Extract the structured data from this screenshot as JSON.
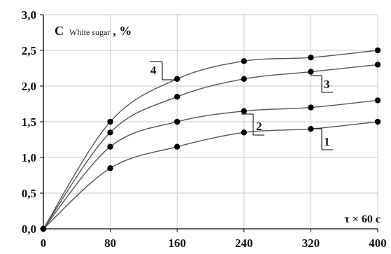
{
  "chart_data": {
    "type": "line",
    "ylabel": {
      "main": "C",
      "sub": "White sugar",
      "unit": ", %"
    },
    "xlabel_annotation": "τ × 60 c",
    "xlim": [
      0,
      400
    ],
    "ylim": [
      0,
      3.0
    ],
    "x_ticks": [
      "0",
      "80",
      "160",
      "240",
      "320",
      "400"
    ],
    "y_ticks": [
      "0,0",
      "0,5",
      "1,0",
      "1,5",
      "2,0",
      "2,5",
      "3,0"
    ],
    "grid": true,
    "series": [
      {
        "label": "1",
        "x": [
          0,
          80,
          160,
          240,
          320,
          400
        ],
        "y": [
          0.0,
          0.85,
          1.15,
          1.35,
          1.4,
          1.5
        ]
      },
      {
        "label": "2",
        "x": [
          0,
          80,
          160,
          240,
          320,
          400
        ],
        "y": [
          0.0,
          1.15,
          1.5,
          1.65,
          1.7,
          1.8
        ]
      },
      {
        "label": "3",
        "x": [
          0,
          80,
          160,
          240,
          320,
          400
        ],
        "y": [
          0.0,
          1.35,
          1.85,
          2.1,
          2.2,
          2.3
        ]
      },
      {
        "label": "4",
        "x": [
          0,
          80,
          160,
          240,
          320,
          400
        ],
        "y": [
          0.0,
          1.5,
          2.1,
          2.35,
          2.4,
          2.5
        ]
      }
    ],
    "colors": {
      "line": "#555555",
      "marker": "#000000",
      "grid": "#c8c8c8",
      "axis": "#000000"
    }
  }
}
